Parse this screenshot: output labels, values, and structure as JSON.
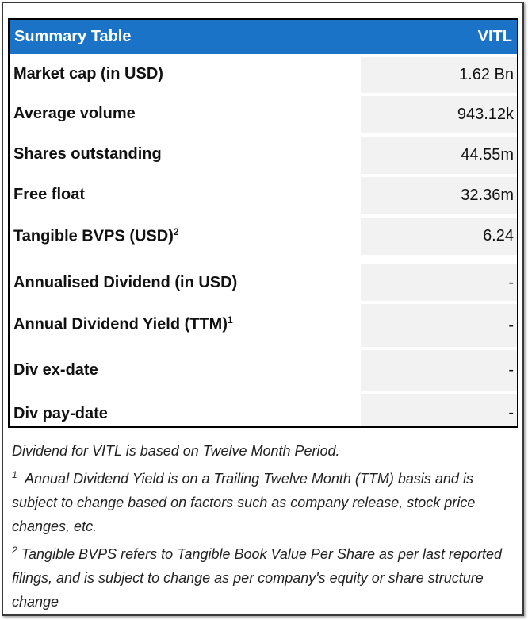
{
  "table": {
    "title": "Summary Table",
    "ticker": "VITL",
    "rows": [
      {
        "label": "Market cap (in USD)",
        "sup": "",
        "value": "1.62 Bn"
      },
      {
        "label": "Average volume",
        "sup": "",
        "value": "943.12k"
      },
      {
        "label": "Shares outstanding",
        "sup": "",
        "value": "44.55m"
      },
      {
        "label": "Free float",
        "sup": "",
        "value": "32.36m"
      },
      {
        "label": "Tangible BVPS (USD)",
        "sup": "2",
        "value": "6.24"
      },
      {
        "label": "Annualised Dividend (in USD)",
        "sup": "",
        "value": "-"
      },
      {
        "label": "Annual Dividend Yield (TTM)",
        "sup": "1",
        "value": "-"
      },
      {
        "label": "Div ex-date",
        "sup": "",
        "value": "-"
      },
      {
        "label": "Div pay-date",
        "sup": "",
        "value": "-"
      }
    ]
  },
  "notes": {
    "line1": "Dividend for VITL is based on Twelve Month Period.",
    "note1_marker": "1",
    "note1_text": "  Annual Dividend Yield is on a Trailing Twelve Month (TTM) basis and is subject to change based on factors such as company release, stock price changes, etc.",
    "note2_marker": "2",
    "note2_text": " Tangible BVPS refers to Tangible Book Value Per Share as per last reported filings, and is subject to change as per company's equity or share structure change"
  }
}
